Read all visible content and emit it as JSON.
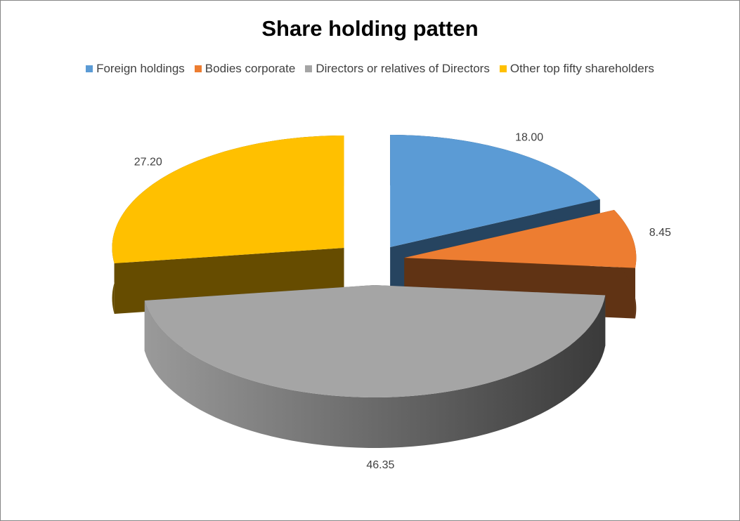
{
  "chart_data": {
    "type": "pie",
    "style": "3d-exploded",
    "title": "Share holding patten",
    "legend_position": "top",
    "categories": [
      "Foreign holdings",
      "Bodies corporate",
      "Directors or relatives of Directors",
      "Other top fifty shareholders"
    ],
    "values": [
      18.0,
      8.45,
      46.35,
      27.2
    ],
    "labels": [
      "18.00",
      "8.45",
      "46.35",
      "27.20"
    ],
    "colors": [
      "#5B9BD5",
      "#ED7D31",
      "#A5A5A5",
      "#FFC000"
    ],
    "side_colors": [
      "#264460",
      "#603314",
      "#555555",
      "#664C00"
    ]
  }
}
